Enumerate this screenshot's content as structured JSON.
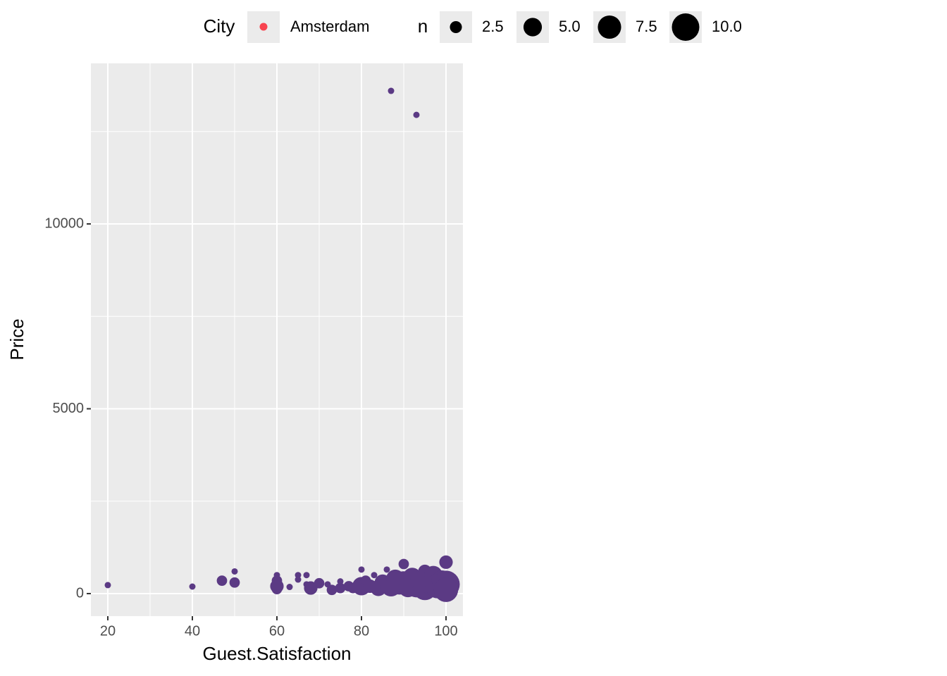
{
  "chart_data": {
    "type": "bubble",
    "x_label": "Guest.Satisfaction",
    "y_label": "Price",
    "xlim": [
      16,
      104
    ],
    "ylim": [
      -610,
      14343
    ],
    "xticks": [
      20,
      40,
      60,
      80,
      100
    ],
    "xminor": [
      30,
      50,
      70,
      90
    ],
    "yticks": [
      0,
      5000,
      10000
    ],
    "yminor": [
      2500,
      7500,
      12500
    ],
    "grid": true,
    "legend_position": "top",
    "color_legend_title": "City",
    "color_legend_key_color": "#f8434f",
    "size_legend_title": "n",
    "size_legend": [
      {
        "value": 2.5,
        "label": "2.5"
      },
      {
        "value": 5,
        "label": "5.0"
      },
      {
        "value": 7.5,
        "label": "7.5"
      },
      {
        "value": 10,
        "label": "10.0"
      }
    ],
    "series": [
      {
        "name": "Amsterdam",
        "color": "#5b3a84",
        "x": [
          20,
          40,
          47,
          50,
          50,
          60,
          60,
          60,
          60,
          63,
          65,
          65,
          67,
          67,
          68,
          70,
          72,
          73,
          75,
          75,
          77,
          78,
          79,
          80,
          80,
          81,
          82,
          83,
          84,
          85,
          86,
          87,
          87,
          88,
          89,
          90,
          90,
          91,
          92,
          93,
          93,
          94,
          95,
          95,
          96,
          97,
          98,
          99,
          100,
          100,
          100
        ],
        "values": [
          230,
          190,
          350,
          600,
          300,
          500,
          350,
          200,
          120,
          180,
          500,
          380,
          500,
          250,
          150,
          280,
          250,
          100,
          150,
          330,
          200,
          150,
          250,
          650,
          200,
          350,
          200,
          500,
          150,
          300,
          650,
          13600,
          200,
          400,
          250,
          800,
          300,
          150,
          450,
          12950,
          200,
          350,
          600,
          150,
          300,
          500,
          200,
          350,
          850,
          250,
          100
        ],
        "sizes": [
          1,
          1,
          2,
          1,
          2,
          1,
          2,
          3,
          2,
          1,
          1,
          1,
          1,
          1,
          3,
          2,
          1,
          2,
          2,
          1,
          2,
          2,
          1,
          1,
          5,
          2,
          3,
          1,
          4,
          4,
          1,
          1,
          6,
          5,
          6,
          2,
          7,
          5,
          5,
          1,
          7,
          6,
          3,
          8,
          7,
          5,
          8,
          6,
          3,
          10,
          8
        ]
      }
    ]
  }
}
